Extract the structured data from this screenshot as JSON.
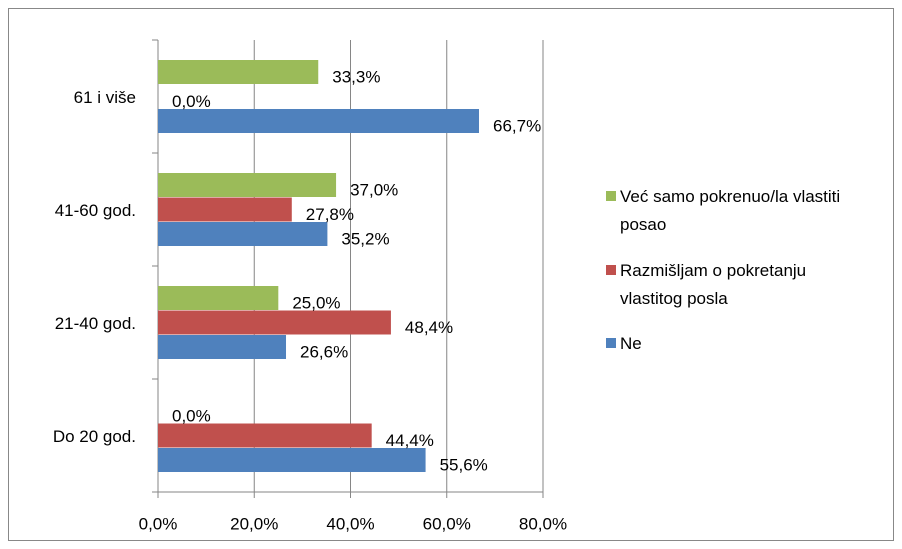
{
  "chart_data": {
    "type": "bar",
    "orientation": "horizontal",
    "categories": [
      "Do 20 god.",
      "21-40 god.",
      "41-60 god.",
      "61 i više"
    ],
    "series": [
      {
        "name": "Ne",
        "color": "#4f81bd",
        "values": [
          55.6,
          26.6,
          35.2,
          66.7
        ],
        "value_labels": [
          "55,6%",
          "26,6%",
          "35,2%",
          "66,7%"
        ]
      },
      {
        "name": "Razmišljam o pokretanju vlastitog posla",
        "color": "#c0504d",
        "values": [
          44.4,
          48.4,
          27.8,
          0.0
        ],
        "value_labels": [
          "44,4%",
          "48,4%",
          "27,8%",
          "0,0%"
        ]
      },
      {
        "name": "Već samo pokrenuo/la vlastiti posao",
        "color": "#9bbb59",
        "values": [
          0.0,
          25.0,
          37.0,
          33.3
        ],
        "value_labels": [
          "0,0%",
          "25,0%",
          "37,0%",
          "33,3%"
        ]
      }
    ],
    "xlim": [
      0,
      80
    ],
    "xticks": [
      {
        "value": 0,
        "label": "0,0%"
      },
      {
        "value": 20,
        "label": "20,0%"
      },
      {
        "value": 40,
        "label": "40,0%"
      },
      {
        "value": 60,
        "label": "60,0%"
      },
      {
        "value": 80,
        "label": "80,0%"
      }
    ],
    "grid": true,
    "legend": "right"
  }
}
